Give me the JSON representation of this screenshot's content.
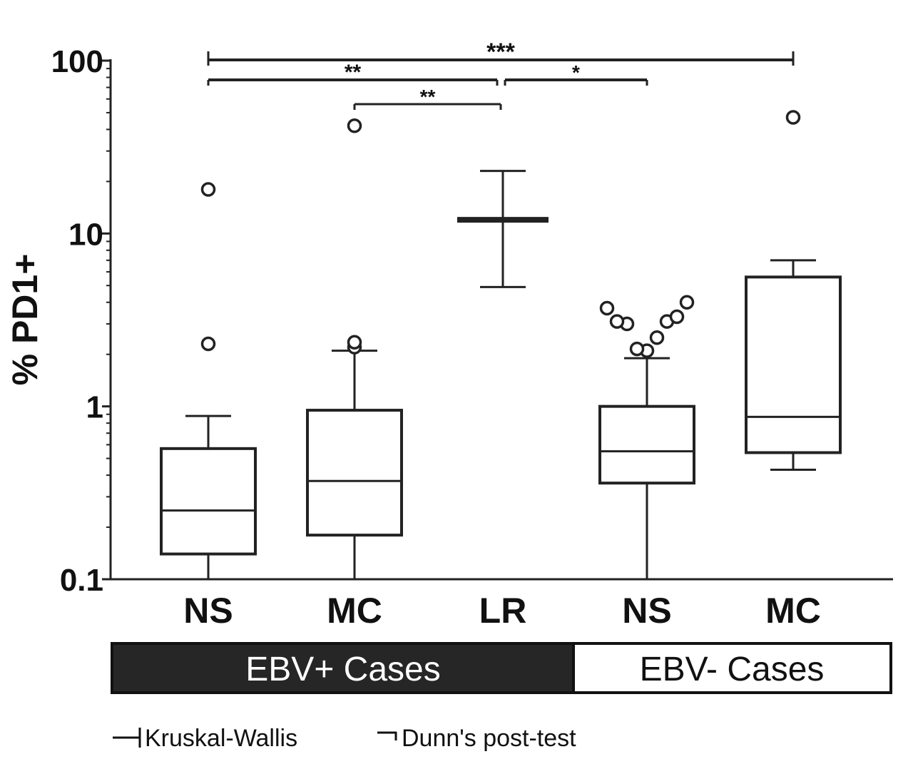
{
  "chart_data": {
    "type": "box",
    "ylabel": "% PD1+",
    "yscale": "log",
    "ylim": [
      0.1,
      100
    ],
    "yticks": [
      "0.1",
      "1",
      "10",
      "100"
    ],
    "categories": [
      "NS",
      "MC",
      "LR",
      "NS",
      "MC"
    ],
    "series": [
      {
        "category": "NS",
        "group": "EBV+ Cases",
        "whisker_low": 0.1,
        "q1": 0.14,
        "median": 0.25,
        "q3": 0.57,
        "whisker_high": 0.88,
        "outliers": [
          2.3,
          18
        ]
      },
      {
        "category": "MC",
        "group": "EBV+ Cases",
        "whisker_low": 0.1,
        "q1": 0.18,
        "median": 0.37,
        "q3": 0.95,
        "whisker_high": 2.1,
        "outliers": [
          2.2,
          2.35,
          42
        ]
      },
      {
        "category": "LR",
        "group": "EBV+ Cases",
        "whisker_low": 4.9,
        "q1": 12,
        "median": 12,
        "q3": 12,
        "whisker_high": 23,
        "outliers": []
      },
      {
        "category": "NS",
        "group": "EBV- Cases",
        "whisker_low": 0.1,
        "q1": 0.36,
        "median": 0.55,
        "q3": 1.0,
        "whisker_high": 1.9,
        "outliers": [
          2.1,
          2.15,
          2.5,
          3.0,
          3.1,
          3.1,
          3.3,
          3.7,
          4.0
        ]
      },
      {
        "category": "MC",
        "group": "EBV- Cases",
        "whisker_low": 0.43,
        "q1": 0.54,
        "median": 0.87,
        "q3": 5.6,
        "whisker_high": 7.0,
        "outliers": [
          47
        ]
      }
    ],
    "groups": [
      {
        "label": "EBV+ Cases",
        "fill": "#262626",
        "text_color": "#ffffff"
      },
      {
        "label": "EBV- Cases",
        "fill": "#ffffff",
        "text_color": "#111111"
      }
    ],
    "significance": [
      {
        "from": "NS (EBV+)",
        "to": "MC (EBV-)",
        "label": "***",
        "test": "Kruskal-Wallis"
      },
      {
        "from": "NS (EBV+)",
        "to": "LR",
        "label": "**",
        "test": "Kruskal-Wallis"
      },
      {
        "from": "LR",
        "to": "NS (EBV-)",
        "label": "*",
        "test": "Dunn's post-test"
      },
      {
        "from": "MC (EBV+)",
        "to": "LR",
        "label": "**",
        "test": "Dunn's post-test"
      }
    ],
    "legend": [
      {
        "symbol": "bracket-both",
        "label": "Kruskal-Wallis"
      },
      {
        "symbol": "bracket-left",
        "label": "Dunn's post-test"
      }
    ]
  },
  "colors": {
    "ink": "#222222",
    "dark_bar": "#262626"
  }
}
